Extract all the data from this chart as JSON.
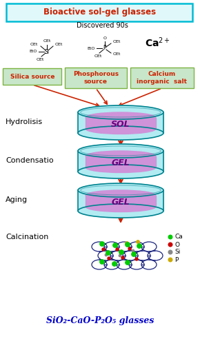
{
  "title": "Bioactive sol-gel glasses",
  "subtitle": "Discovered 90s",
  "title_color": "#cc2200",
  "title_bg": "#e0f8fa",
  "title_border": "#00bcd4",
  "box_text_color": "#cc2200",
  "box_fill": "#c8e6c9",
  "box_edge": "#7cb342",
  "stage_labels": [
    "Hydrolisis",
    "Condensatio",
    "Aging",
    "Calcination"
  ],
  "sol_label": "SOL",
  "gel_label": "GEL",
  "dish_fill": "#b2ebf2",
  "dish_edge": "#00838f",
  "liq_color": "#ce93d8",
  "liq_label_color": "#6a0080",
  "legend_items": [
    {
      "label": "Ca",
      "color": "#00cc00"
    },
    {
      "label": "O",
      "color": "#cc0000"
    },
    {
      "label": "Si",
      "color": "#888888"
    },
    {
      "label": "P",
      "color": "#ccaa00"
    }
  ],
  "bottom_text": "SiO₂-CaO-P₂O₅ glasses",
  "bottom_color": "#0000cc",
  "arrow_color": "#cc2200",
  "ca2plus": "Ca$^{2+}$",
  "bg_color": "#ffffff",
  "ring_color": "#1a237e",
  "fig_w": 2.9,
  "fig_h": 4.92,
  "dpi": 100
}
